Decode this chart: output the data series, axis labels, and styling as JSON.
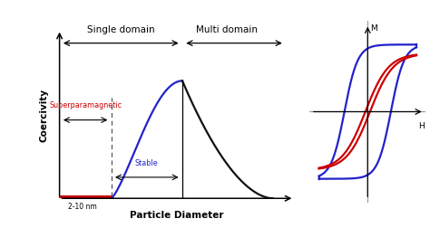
{
  "background_color": "#ffffff",
  "single_domain_label": "Single domain",
  "multi_domain_label": "Multi domain",
  "superparamagnetic_label": "Superparamagnetic",
  "stable_label": "Stable",
  "particle_diameter_label": "Particle Diameter",
  "coercivity_label": "Coercivity",
  "nm_label": "2-10 nm",
  "M_label": "M",
  "H_label": "H",
  "red_color": "#cc0000",
  "blue_color": "#2222cc",
  "black_color": "#111111",
  "gray_color": "#999999"
}
